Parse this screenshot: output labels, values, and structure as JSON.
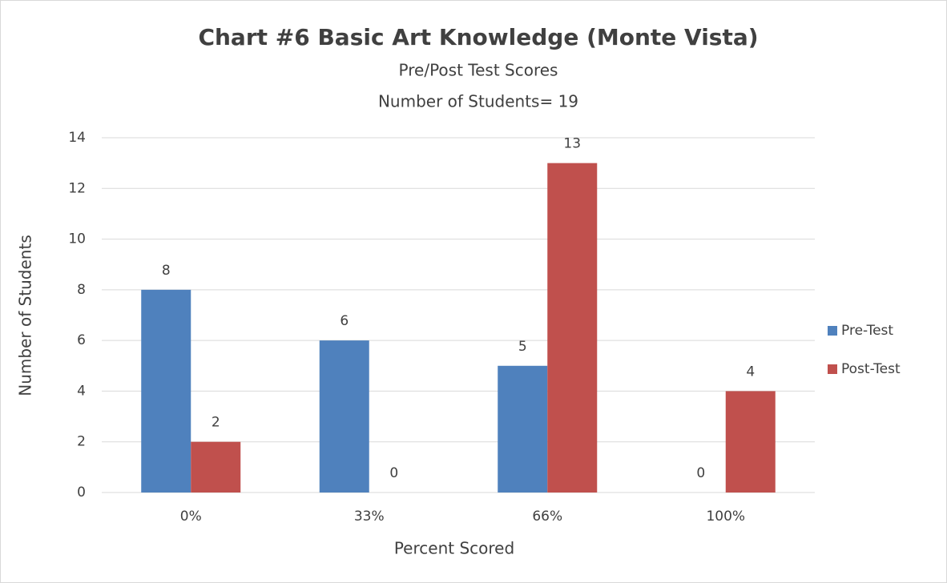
{
  "chart_data": {
    "type": "bar",
    "title": "Chart #6 Basic Art Knowledge (Monte Vista)",
    "subtitle": [
      "Pre/Post Test Scores",
      "Number of Students= 19"
    ],
    "x_label": "Percent Scored",
    "y_label": "Number of Students",
    "categories": [
      "0%",
      "33%",
      "66%",
      "100%"
    ],
    "series": [
      {
        "name": "Pre-Test",
        "color": "#4f81bd",
        "values": [
          8,
          6,
          5,
          0
        ]
      },
      {
        "name": "Post-Test",
        "color": "#c0504d",
        "values": [
          2,
          0,
          13,
          4
        ]
      }
    ],
    "ylim": [
      0,
      14
    ],
    "yticks": [
      0,
      2,
      4,
      6,
      8,
      10,
      12,
      14
    ],
    "grid": true,
    "legend": "right"
  }
}
